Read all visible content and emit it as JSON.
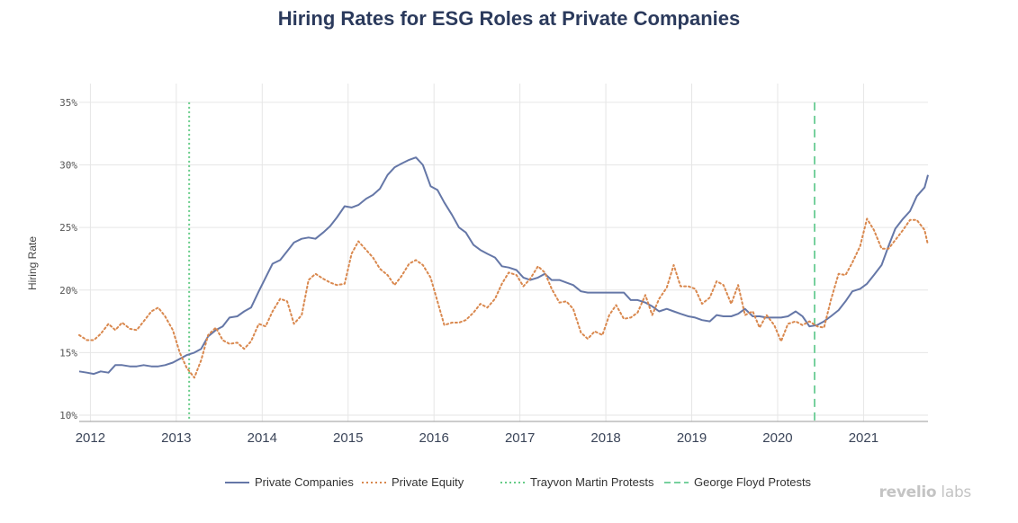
{
  "chart_data": {
    "type": "line",
    "title": "Hiring Rates for ESG Roles at Private Companies",
    "xlabel": "",
    "ylabel": "Hiring Rate",
    "xlim": [
      2011.87,
      2021.75
    ],
    "ylim": [
      9.5,
      36.5
    ],
    "y_ticks": [
      10,
      15,
      20,
      25,
      30,
      35
    ],
    "y_tick_labels": [
      "10%",
      "15%",
      "20%",
      "25%",
      "30%",
      "35%"
    ],
    "x_ticks": [
      2012,
      2013,
      2014,
      2015,
      2016,
      2017,
      2018,
      2019,
      2020,
      2021
    ],
    "x_tick_labels": [
      "2012",
      "2013",
      "2014",
      "2015",
      "2016",
      "2017",
      "2018",
      "2019",
      "2020",
      "2021"
    ],
    "grid": true,
    "legend_position": "bottom",
    "series": [
      {
        "name": "Private Companies",
        "color": "#6577a7",
        "style": "solid",
        "x": [
          2011.87,
          2011.96,
          2012.04,
          2012.12,
          2012.21,
          2012.29,
          2012.37,
          2012.46,
          2012.54,
          2012.62,
          2012.71,
          2012.79,
          2012.87,
          2012.96,
          2013.04,
          2013.12,
          2013.21,
          2013.29,
          2013.37,
          2013.46,
          2013.54,
          2013.62,
          2013.71,
          2013.79,
          2013.87,
          2013.96,
          2014.04,
          2014.12,
          2014.21,
          2014.29,
          2014.37,
          2014.46,
          2014.54,
          2014.62,
          2014.71,
          2014.79,
          2014.87,
          2014.96,
          2015.04,
          2015.12,
          2015.21,
          2015.29,
          2015.37,
          2015.46,
          2015.54,
          2015.62,
          2015.71,
          2015.79,
          2015.87,
          2015.96,
          2016.04,
          2016.12,
          2016.21,
          2016.29,
          2016.37,
          2016.46,
          2016.54,
          2016.62,
          2016.71,
          2016.79,
          2016.87,
          2016.96,
          2017.04,
          2017.12,
          2017.21,
          2017.29,
          2017.37,
          2017.46,
          2017.54,
          2017.62,
          2017.71,
          2017.79,
          2017.87,
          2017.96,
          2018.04,
          2018.12,
          2018.21,
          2018.29,
          2018.37,
          2018.46,
          2018.54,
          2018.62,
          2018.71,
          2018.79,
          2018.87,
          2018.96,
          2019.04,
          2019.12,
          2019.21,
          2019.29,
          2019.37,
          2019.46,
          2019.54,
          2019.62,
          2019.71,
          2019.79,
          2019.87,
          2019.96,
          2020.04,
          2020.12,
          2020.21,
          2020.29,
          2020.37,
          2020.46,
          2020.54,
          2020.62,
          2020.71,
          2020.79,
          2020.87,
          2020.96,
          2021.04,
          2021.12,
          2021.21,
          2021.29,
          2021.37,
          2021.46,
          2021.54,
          2021.62,
          2021.71,
          2021.75
        ],
        "y": [
          13.5,
          13.4,
          13.3,
          13.5,
          13.4,
          14.0,
          14.0,
          13.9,
          13.9,
          14.0,
          13.9,
          13.9,
          14.0,
          14.2,
          14.5,
          14.8,
          15.0,
          15.3,
          16.3,
          16.8,
          17.1,
          17.8,
          17.9,
          18.3,
          18.6,
          19.9,
          21.0,
          22.1,
          22.4,
          23.1,
          23.8,
          24.1,
          24.2,
          24.1,
          24.6,
          25.1,
          25.8,
          26.7,
          26.6,
          26.8,
          27.3,
          27.6,
          28.1,
          29.2,
          29.8,
          30.1,
          30.4,
          30.6,
          30.0,
          28.3,
          28.0,
          27.0,
          26.0,
          25.0,
          24.6,
          23.6,
          23.2,
          22.9,
          22.6,
          21.9,
          21.8,
          21.6,
          21.0,
          20.8,
          21.0,
          21.3,
          20.8,
          20.8,
          20.6,
          20.4,
          19.9,
          19.8,
          19.8,
          19.8,
          19.8,
          19.8,
          19.8,
          19.2,
          19.2,
          19.0,
          18.7,
          18.3,
          18.5,
          18.3,
          18.1,
          17.9,
          17.8,
          17.6,
          17.5,
          18.0,
          17.9,
          17.9,
          18.1,
          18.5,
          17.9,
          17.9,
          17.8,
          17.8,
          17.8,
          17.9,
          18.3,
          17.9,
          17.1,
          17.2,
          17.5,
          17.9,
          18.4,
          19.1,
          19.9,
          20.1,
          20.5,
          21.2,
          22.0,
          23.5,
          24.9,
          25.7,
          26.3,
          27.5,
          28.2,
          29.2
        ]
      },
      {
        "name": "Private Equity",
        "color": "#d9884e",
        "style": "dotted",
        "x": [
          2011.87,
          2011.96,
          2012.04,
          2012.12,
          2012.21,
          2012.29,
          2012.37,
          2012.46,
          2012.54,
          2012.62,
          2012.71,
          2012.79,
          2012.87,
          2012.96,
          2013.04,
          2013.12,
          2013.21,
          2013.29,
          2013.37,
          2013.46,
          2013.54,
          2013.62,
          2013.71,
          2013.79,
          2013.87,
          2013.96,
          2014.04,
          2014.12,
          2014.21,
          2014.29,
          2014.37,
          2014.46,
          2014.54,
          2014.62,
          2014.71,
          2014.79,
          2014.87,
          2014.96,
          2015.04,
          2015.12,
          2015.21,
          2015.29,
          2015.37,
          2015.46,
          2015.54,
          2015.62,
          2015.71,
          2015.79,
          2015.87,
          2015.96,
          2016.04,
          2016.12,
          2016.21,
          2016.29,
          2016.37,
          2016.46,
          2016.54,
          2016.62,
          2016.71,
          2016.79,
          2016.87,
          2016.96,
          2017.04,
          2017.12,
          2017.21,
          2017.29,
          2017.37,
          2017.46,
          2017.54,
          2017.62,
          2017.71,
          2017.79,
          2017.87,
          2017.96,
          2018.04,
          2018.12,
          2018.21,
          2018.29,
          2018.37,
          2018.46,
          2018.54,
          2018.62,
          2018.71,
          2018.79,
          2018.87,
          2018.96,
          2019.04,
          2019.12,
          2019.21,
          2019.29,
          2019.37,
          2019.46,
          2019.54,
          2019.62,
          2019.71,
          2019.79,
          2019.87,
          2019.96,
          2020.04,
          2020.12,
          2020.21,
          2020.29,
          2020.37,
          2020.46,
          2020.54,
          2020.62,
          2020.71,
          2020.79,
          2020.87,
          2020.96,
          2021.04,
          2021.12,
          2021.21,
          2021.29,
          2021.37,
          2021.46,
          2021.54,
          2021.62,
          2021.71,
          2021.75
        ],
        "y": [
          16.4,
          16.0,
          16.0,
          16.5,
          17.3,
          16.8,
          17.4,
          16.9,
          16.8,
          17.5,
          18.3,
          18.6,
          17.9,
          16.8,
          15.0,
          13.8,
          13.0,
          14.4,
          16.4,
          17.0,
          16.0,
          15.7,
          15.8,
          15.3,
          15.9,
          17.3,
          17.1,
          18.3,
          19.3,
          19.1,
          17.3,
          18.0,
          20.8,
          21.3,
          20.9,
          20.6,
          20.4,
          20.5,
          22.9,
          23.9,
          23.2,
          22.6,
          21.7,
          21.2,
          20.4,
          21.1,
          22.1,
          22.4,
          22.0,
          21.0,
          19.1,
          17.2,
          17.4,
          17.4,
          17.6,
          18.2,
          18.9,
          18.6,
          19.3,
          20.5,
          21.4,
          21.2,
          20.3,
          20.9,
          21.9,
          21.4,
          20.1,
          19.0,
          19.1,
          18.5,
          16.6,
          16.1,
          16.7,
          16.4,
          18.0,
          18.8,
          17.7,
          17.8,
          18.2,
          19.6,
          18.0,
          19.3,
          20.2,
          22.0,
          20.3,
          20.3,
          20.1,
          18.9,
          19.4,
          20.7,
          20.4,
          18.9,
          20.4,
          18.0,
          18.3,
          17.0,
          18.0,
          17.2,
          15.9,
          17.3,
          17.5,
          17.2,
          17.5,
          17.1,
          17.0,
          19.2,
          21.3,
          21.2,
          22.2,
          23.5,
          25.7,
          24.8,
          23.3,
          23.3,
          24.0,
          24.8,
          25.6,
          25.6,
          24.8,
          23.6
        ]
      }
    ],
    "events": [
      {
        "name": "Trayvon Martin Protests",
        "x": 2013.15,
        "color": "#66cc88",
        "style": "dotted"
      },
      {
        "name": "George Floyd Protests",
        "x": 2020.43,
        "color": "#77d19e",
        "style": "dashed"
      }
    ]
  },
  "brand": {
    "bold": "revelio",
    "light": " labs"
  }
}
